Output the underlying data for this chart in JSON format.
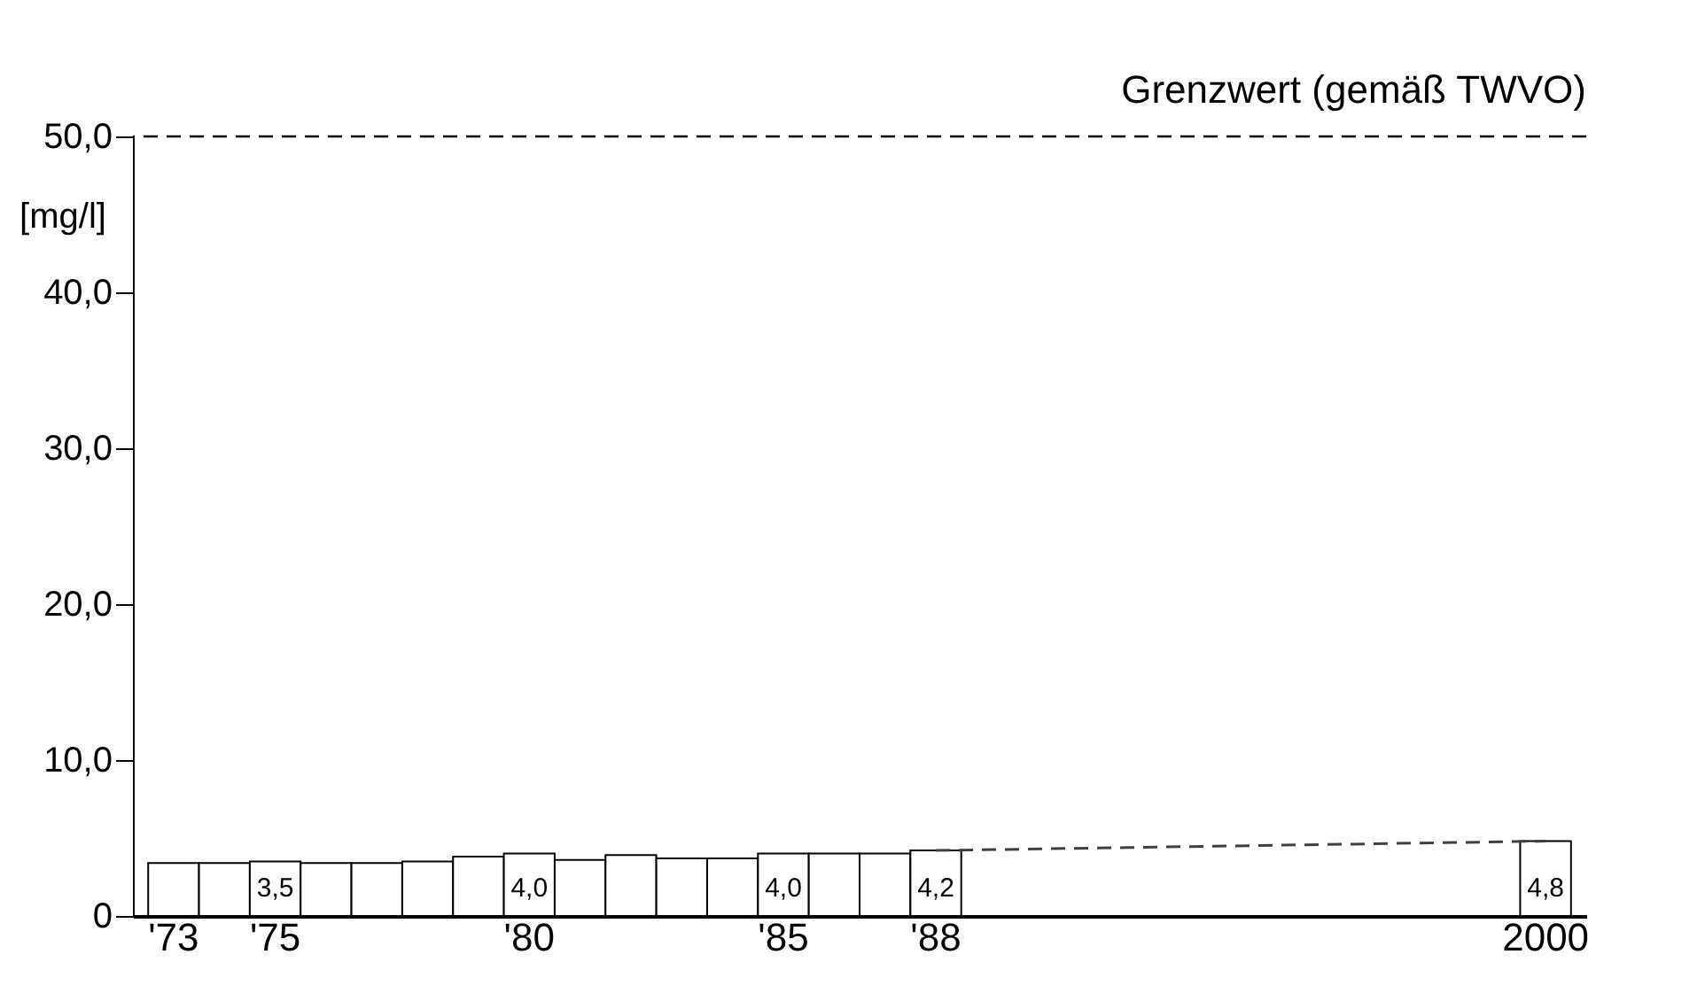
{
  "chart_data": {
    "type": "bar",
    "ylabel": "[mg/l]",
    "categories": [
      "'73",
      null,
      "'75",
      null,
      null,
      null,
      null,
      "'80",
      null,
      null,
      null,
      null,
      "'85",
      null,
      null,
      "'88",
      null,
      null,
      null,
      null,
      null,
      null,
      null,
      null,
      null,
      null,
      null,
      "2000"
    ],
    "series": [
      {
        "color": "#ffffff",
        "values": [
          3.4,
          3.4,
          3.5,
          3.4,
          3.4,
          3.5,
          3.8,
          4.0,
          3.6,
          3.9,
          3.7,
          3.7,
          4.0,
          4.0,
          4.0,
          4.2,
          null,
          null,
          null,
          null,
          null,
          null,
          null,
          null,
          null,
          null,
          null,
          4.8
        ],
        "value_labels": [
          null,
          null,
          "3,5",
          null,
          null,
          null,
          null,
          "4,0",
          null,
          null,
          null,
          null,
          "4,0",
          null,
          null,
          "4,2",
          null,
          null,
          null,
          null,
          null,
          null,
          null,
          null,
          null,
          null,
          null,
          "4,8"
        ]
      },
      {
        "type": "line",
        "color": "#404040",
        "line_style": "dashed",
        "values": [
          null,
          null,
          null,
          null,
          null,
          null,
          null,
          null,
          null,
          null,
          null,
          null,
          null,
          null,
          null,
          4.2,
          null,
          null,
          null,
          null,
          null,
          null,
          null,
          null,
          null,
          null,
          null,
          4.8
        ]
      }
    ],
    "ylim": [
      0,
      50
    ],
    "yticks": [
      0,
      {
        "value": 10,
        "label": "10,0"
      },
      {
        "value": 20,
        "label": "20,0"
      },
      {
        "value": 30,
        "label": "30,0"
      },
      {
        "value": 40,
        "label": "40,0"
      },
      {
        "value": 50,
        "label": "50,0"
      }
    ],
    "ref_lines": [
      {
        "axis": "y",
        "value": 50,
        "label": "Grenzwert (gemäß TWVO)",
        "color": "#000000",
        "line_style": "dashed"
      }
    ],
    "grid": false
  }
}
